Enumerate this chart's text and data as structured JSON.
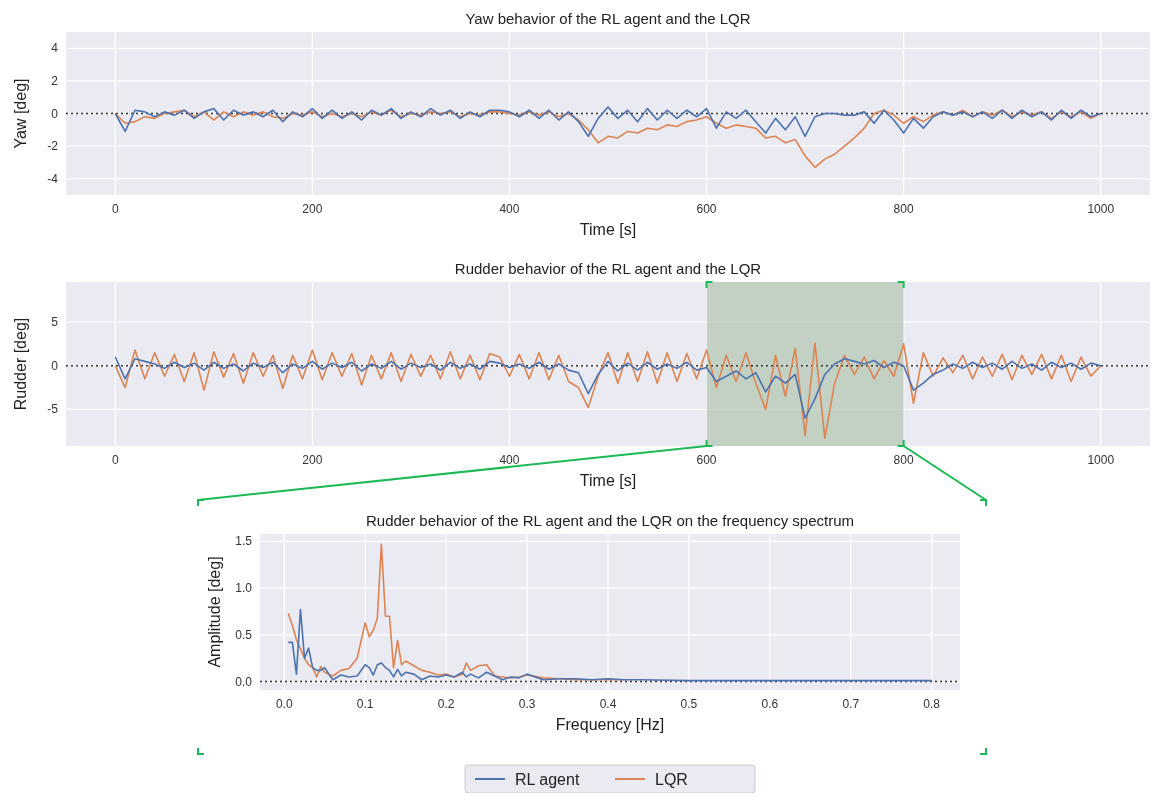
{
  "chart_data": [
    {
      "type": "line",
      "title": "Yaw behavior of the RL agent and the LQR",
      "xlabel": "Time [s]",
      "ylabel": "Yaw [deg]",
      "x": [
        0,
        10,
        20,
        30,
        40,
        50,
        60,
        70,
        80,
        90,
        100,
        110,
        120,
        130,
        140,
        150,
        160,
        170,
        180,
        190,
        200,
        210,
        220,
        230,
        240,
        250,
        260,
        270,
        280,
        290,
        300,
        310,
        320,
        330,
        340,
        350,
        360,
        370,
        380,
        390,
        400,
        410,
        420,
        430,
        440,
        450,
        460,
        470,
        480,
        490,
        500,
        510,
        520,
        530,
        540,
        550,
        560,
        570,
        580,
        590,
        600,
        610,
        620,
        630,
        640,
        650,
        660,
        670,
        680,
        690,
        700,
        710,
        720,
        730,
        740,
        750,
        760,
        770,
        780,
        790,
        800,
        810,
        820,
        830,
        840,
        850,
        860,
        870,
        880,
        890,
        900,
        910,
        920,
        930,
        940,
        950,
        960,
        970,
        980,
        990,
        1000
      ],
      "series": [
        {
          "color": "#4c72b0",
          "values": [
            0,
            -1.1,
            0.2,
            0.1,
            -0.2,
            0.1,
            -0.1,
            0.2,
            -0.3,
            0.1,
            0.3,
            -0.4,
            0.2,
            -0.1,
            0.1,
            -0.2,
            0.2,
            -0.5,
            0.1,
            -0.2,
            0.3,
            -0.3,
            0.2,
            -0.3,
            0.1,
            -0.4,
            0.2,
            -0.1,
            0.3,
            -0.3,
            0.1,
            -0.2,
            0.3,
            -0.1,
            0.2,
            -0.3,
            0.1,
            -0.2,
            0.2,
            0.2,
            0.1,
            -0.2,
            0.2,
            -0.3,
            0.2,
            -0.4,
            0.1,
            -0.5,
            -1.4,
            -0.3,
            0.4,
            -0.3,
            0.2,
            -0.5,
            0.3,
            -0.4,
            0.2,
            -0.3,
            0.2,
            -0.2,
            0.3,
            -0.9,
            0.1,
            -0.3,
            0.2,
            -0.5,
            -1.2,
            -0.3,
            -1.0,
            -0.2,
            -1.4,
            -0.2,
            0,
            0,
            -0.1,
            -0.1,
            0.1,
            -0.6,
            0.2,
            -0.4,
            -1.2,
            -0.3,
            -0.9,
            -0.2,
            0.1,
            -0.1,
            0.1,
            -0.2,
            0.1,
            -0.3,
            0.2,
            -0.3,
            0.2,
            -0.2,
            0.1,
            -0.4,
            0.2,
            -0.3,
            0.2,
            -0.2,
            0
          ]
        },
        {
          "color": "#dd8452",
          "values": [
            0,
            -0.6,
            -0.5,
            -0.2,
            -0.3,
            0,
            0.1,
            0.2,
            -0.2,
            0.1,
            -0.4,
            0.1,
            -0.2,
            0.1,
            -0.1,
            0.1,
            -0.2,
            -0.3,
            0,
            -0.1,
            0.1,
            -0.2,
            0,
            -0.2,
            0,
            -0.2,
            0.1,
            -0.1,
            0.2,
            -0.2,
            0,
            -0.1,
            0.1,
            0,
            0.1,
            -0.2,
            0,
            -0.1,
            0.1,
            0.1,
            0,
            -0.1,
            0.1,
            -0.1,
            0.1,
            -0.2,
            0,
            -0.4,
            -1.0,
            -1.8,
            -1.4,
            -1.5,
            -1.1,
            -1.2,
            -0.9,
            -1.0,
            -0.7,
            -0.8,
            -0.5,
            -0.4,
            -0.2,
            -0.6,
            -0.9,
            -0.7,
            -0.8,
            -0.9,
            -1.5,
            -1.4,
            -1.8,
            -1.6,
            -2.6,
            -3.3,
            -2.8,
            -2.5,
            -2.0,
            -1.5,
            -0.9,
            0,
            0.2,
            -0.1,
            -0.6,
            -0.2,
            -0.5,
            -0.1,
            0.1,
            -0.1,
            0.2,
            -0.2,
            0.1,
            -0.1,
            0.2,
            -0.2,
            0.1,
            -0.1,
            0.1,
            -0.3,
            0.1,
            -0.2,
            0.1,
            -0.3,
            0
          ]
        }
      ],
      "xlim": [
        -50,
        1050
      ],
      "xticks": [
        0,
        200,
        400,
        600,
        800,
        1000
      ],
      "ylim": [
        -5,
        5
      ],
      "yticks": [
        -4,
        -2,
        0,
        2,
        4
      ],
      "grid": true,
      "legend": false,
      "ref_lines": [
        {
          "axis": "y",
          "value": 0,
          "color": "#333333",
          "line_style": "dotted"
        }
      ]
    },
    {
      "type": "line",
      "title": "Rudder behavior of the RL agent and the LQR",
      "xlabel": "Time [s]",
      "ylabel": "Rudder [deg]",
      "x": [
        0,
        10,
        20,
        30,
        40,
        50,
        60,
        70,
        80,
        90,
        100,
        110,
        120,
        130,
        140,
        150,
        160,
        170,
        180,
        190,
        200,
        210,
        220,
        230,
        240,
        250,
        260,
        270,
        280,
        290,
        300,
        310,
        320,
        330,
        340,
        350,
        360,
        370,
        380,
        390,
        400,
        410,
        420,
        430,
        440,
        450,
        460,
        470,
        480,
        490,
        500,
        510,
        520,
        530,
        540,
        550,
        560,
        570,
        580,
        590,
        600,
        610,
        620,
        630,
        640,
        650,
        660,
        670,
        680,
        690,
        700,
        710,
        720,
        730,
        740,
        750,
        760,
        770,
        780,
        790,
        800,
        810,
        820,
        830,
        840,
        850,
        860,
        870,
        880,
        890,
        900,
        910,
        920,
        930,
        940,
        950,
        960,
        970,
        980,
        990,
        1000
      ],
      "series": [
        {
          "color": "#4c72b0",
          "values": [
            1,
            -1.5,
            0.8,
            0.5,
            0.2,
            -0.3,
            0.4,
            -0.2,
            0.3,
            -0.5,
            0.4,
            -0.3,
            0.2,
            -0.6,
            0.3,
            -0.2,
            0.4,
            -0.8,
            0.2,
            -0.3,
            0.5,
            -0.4,
            0.3,
            -0.2,
            0.4,
            -0.6,
            0.2,
            -0.3,
            0.5,
            -0.4,
            0.3,
            -0.2,
            0.2,
            -0.5,
            0.4,
            -0.3,
            0.2,
            -0.4,
            0.5,
            0.3,
            -0.2,
            0.2,
            -0.3,
            0.4,
            -0.4,
            0.2,
            -0.5,
            -0.8,
            -3.2,
            -1.0,
            0.5,
            -0.6,
            0.3,
            -0.5,
            0.4,
            -0.4,
            0.2,
            -0.3,
            0.4,
            -0.5,
            -0.2,
            -1.8,
            -1.2,
            -0.6,
            -1.5,
            -0.8,
            -3.0,
            -1.2,
            -2.0,
            -1.0,
            -6.0,
            -3.8,
            -1.0,
            0.2,
            0.8,
            0.5,
            0.2,
            0.6,
            -0.2,
            0.4,
            0,
            -2.8,
            -2.0,
            -1.0,
            -0.5,
            0.2,
            -0.3,
            0.4,
            -0.2,
            0.3,
            -0.4,
            0.5,
            -0.3,
            0.2,
            -0.5,
            0.4,
            -0.2,
            0.3,
            -0.4,
            0.3,
            0
          ]
        },
        {
          "color": "#dd8452",
          "values": [
            0,
            -2.5,
            1.8,
            -1.5,
            1.5,
            -1.2,
            1.3,
            -1.8,
            1.5,
            -2.8,
            1.6,
            -1.3,
            1.4,
            -2.0,
            1.5,
            -1.2,
            1.2,
            -2.6,
            1.2,
            -1.5,
            1.8,
            -1.6,
            1.5,
            -1.2,
            1.4,
            -2.2,
            1.2,
            -1.5,
            1.5,
            -1.8,
            1.3,
            -1.2,
            1.2,
            -1.5,
            1.6,
            -1.5,
            1.2,
            -1.6,
            1.4,
            1.0,
            -1.2,
            1.3,
            -1.5,
            1.5,
            -1.6,
            1.2,
            -1.8,
            -2.5,
            -4.8,
            -1.2,
            1.5,
            -2.0,
            1.5,
            -1.8,
            1.6,
            -2.0,
            1.5,
            -1.8,
            1.4,
            -1.5,
            1.8,
            -2.5,
            1.2,
            -1.8,
            1.5,
            -2.0,
            -5.0,
            1.2,
            -3.5,
            2.0,
            -8.0,
            2.6,
            -8.3,
            -2.0,
            1.2,
            -1.0,
            1.0,
            -1.5,
            0.6,
            -1.2,
            2.5,
            -4.3,
            1.5,
            -1.2,
            0.9,
            -0.8,
            1.2,
            -1.5,
            1.0,
            -1.2,
            1.3,
            -1.6,
            1.2,
            -1.0,
            1.3,
            -1.5,
            1.2,
            -1.8,
            1.0,
            -1.2,
            0
          ]
        }
      ],
      "xlim": [
        -50,
        1050
      ],
      "xticks": [
        0,
        200,
        400,
        600,
        800,
        1000
      ],
      "ylim": [
        -9.2,
        9.6
      ],
      "yticks": [
        -5,
        0,
        5
      ],
      "grid": true,
      "legend": false,
      "ref_lines": [
        {
          "axis": "y",
          "value": 0,
          "color": "#333333",
          "line_style": "dotted"
        }
      ],
      "bands": [
        {
          "axis": "x",
          "from": 600,
          "to": 800,
          "color": "#a9c0a6"
        }
      ]
    },
    {
      "type": "line",
      "title": "Rudder behavior of the RL agent and the LQR on the frequency spectrum",
      "xlabel": "Frequency [Hz]",
      "ylabel": "Amplitude [deg]",
      "x": [
        0.005,
        0.01,
        0.015,
        0.02,
        0.025,
        0.03,
        0.035,
        0.04,
        0.045,
        0.05,
        0.055,
        0.06,
        0.07,
        0.08,
        0.09,
        0.1,
        0.105,
        0.11,
        0.115,
        0.12,
        0.125,
        0.13,
        0.135,
        0.14,
        0.145,
        0.15,
        0.16,
        0.17,
        0.18,
        0.19,
        0.2,
        0.21,
        0.22,
        0.225,
        0.23,
        0.24,
        0.25,
        0.26,
        0.27,
        0.28,
        0.29,
        0.3,
        0.32,
        0.34,
        0.36,
        0.38,
        0.4,
        0.42,
        0.44,
        0.5,
        0.6,
        0.7,
        0.8
      ],
      "series": [
        {
          "name": "RL agent",
          "color": "#4c72b0",
          "values": [
            0.42,
            0.42,
            0.08,
            0.77,
            0.25,
            0.36,
            0.15,
            0.12,
            0.12,
            0.15,
            0.08,
            0.02,
            0.07,
            0.05,
            0.06,
            0.18,
            0.15,
            0.07,
            0.18,
            0.2,
            0.15,
            0.12,
            0.05,
            0.13,
            0.06,
            0.1,
            0.08,
            0.02,
            0.06,
            0.05,
            0.07,
            0.05,
            0.1,
            0.05,
            0.08,
            0.04,
            0.1,
            0.06,
            0.02,
            0.05,
            0.04,
            0.08,
            0.02,
            0.03,
            0.03,
            0.02,
            0.03,
            0.02,
            0.02,
            0.01,
            0.01,
            0.01,
            0.01
          ]
        },
        {
          "name": "LQR",
          "color": "#dd8452",
          "values": [
            0.73,
            0.6,
            0.45,
            0.35,
            0.25,
            0.18,
            0.15,
            0.05,
            0.16,
            0.1,
            0.08,
            0.06,
            0.12,
            0.14,
            0.25,
            0.63,
            0.48,
            0.55,
            0.68,
            1.47,
            0.7,
            0.7,
            0.15,
            0.44,
            0.18,
            0.22,
            0.17,
            0.12,
            0.1,
            0.07,
            0.08,
            0.05,
            0.08,
            0.2,
            0.12,
            0.17,
            0.18,
            0.06,
            0.05,
            0.04,
            0.05,
            0.07,
            0.04,
            0.03,
            0.02,
            0.02,
            0.02,
            0.02,
            null,
            null,
            null,
            null,
            null
          ]
        }
      ],
      "xlim": [
        -0.03,
        0.835
      ],
      "xticks": [
        {
          "value": 0,
          "label": "0.0"
        },
        {
          "value": 0.1,
          "label": "0.1"
        },
        {
          "value": 0.2,
          "label": "0.2"
        },
        {
          "value": 0.3,
          "label": "0.3"
        },
        {
          "value": 0.4,
          "label": "0.4"
        },
        {
          "value": 0.5,
          "label": "0.5"
        },
        {
          "value": 0.6,
          "label": "0.6"
        },
        {
          "value": 0.7,
          "label": "0.7"
        },
        {
          "value": 0.8,
          "label": "0.8"
        }
      ],
      "ylim": [
        -0.09,
        1.58
      ],
      "yticks": [
        {
          "value": 0,
          "label": "0.0"
        },
        {
          "value": 0.5,
          "label": "0.5"
        },
        {
          "value": 1,
          "label": "1.0"
        },
        {
          "value": 1.5,
          "label": "1.5"
        }
      ],
      "grid": true,
      "legend": "bottom",
      "ref_lines": [
        {
          "axis": "y",
          "value": 0,
          "color": "#333333",
          "line_style": "dotted"
        }
      ]
    }
  ]
}
